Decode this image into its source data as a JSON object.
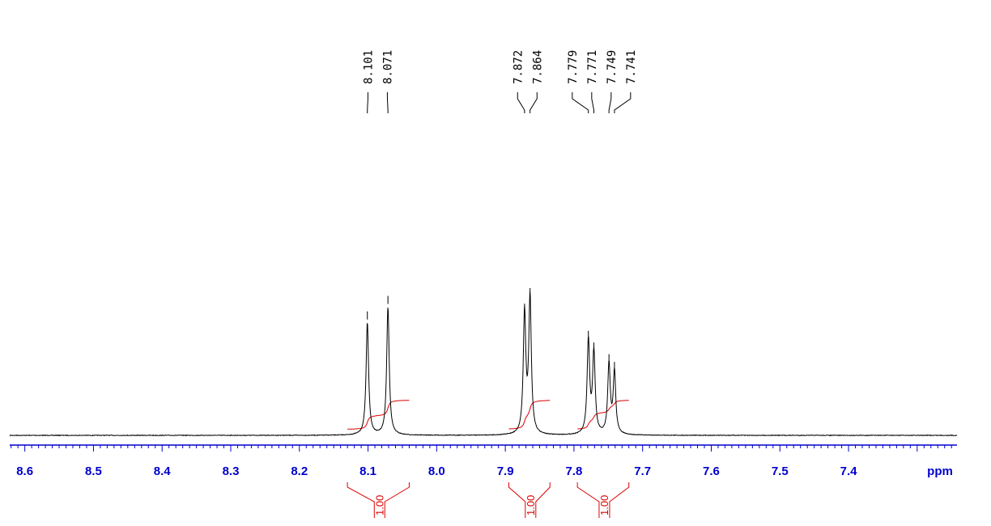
{
  "chart_data": {
    "type": "line",
    "xlabel": "ppm",
    "xlim": [
      8.622,
      7.242
    ],
    "x_reversed": true,
    "grid": false,
    "x_ticks": [
      8.6,
      8.5,
      8.4,
      8.3,
      8.2,
      8.1,
      8.0,
      7.9,
      7.8,
      7.7,
      7.6,
      7.5,
      7.4
    ],
    "x_tick_labels": [
      "8.6",
      "8.5",
      "8.4",
      "8.3",
      "8.2",
      "8.1",
      "8.0",
      "7.9",
      "7.8",
      "7.7",
      "7.6",
      "7.5",
      "7.4"
    ],
    "peaks": [
      {
        "ppm": 8.101,
        "label": "8.101",
        "intensity": 0.29
      },
      {
        "ppm": 8.071,
        "label": "8.071",
        "intensity": 0.33
      },
      {
        "ppm": 7.872,
        "label": "7.872",
        "intensity": 0.31
      },
      {
        "ppm": 7.864,
        "label": "7.864",
        "intensity": 0.35
      },
      {
        "ppm": 7.779,
        "label": "7.779",
        "intensity": 0.24
      },
      {
        "ppm": 7.771,
        "label": "7.771",
        "intensity": 0.21
      },
      {
        "ppm": 7.749,
        "label": "7.749",
        "intensity": 0.18
      },
      {
        "ppm": 7.741,
        "label": "7.741",
        "intensity": 0.16
      }
    ],
    "peak_label_groups": [
      [
        0,
        1
      ],
      [
        2,
        3
      ],
      [
        4,
        5,
        6,
        7
      ]
    ],
    "integrals": [
      {
        "from": 8.13,
        "to": 8.04,
        "value": 1.0,
        "label": "1.00"
      },
      {
        "from": 7.895,
        "to": 7.835,
        "value": 1.0,
        "label": "1.00"
      },
      {
        "from": 7.795,
        "to": 7.72,
        "value": 1.0,
        "label": "1.00"
      }
    ],
    "colors": {
      "spectrum": "#000000",
      "axis": "#0000cc",
      "integral": "#dd0000",
      "labels": "#000000"
    }
  }
}
